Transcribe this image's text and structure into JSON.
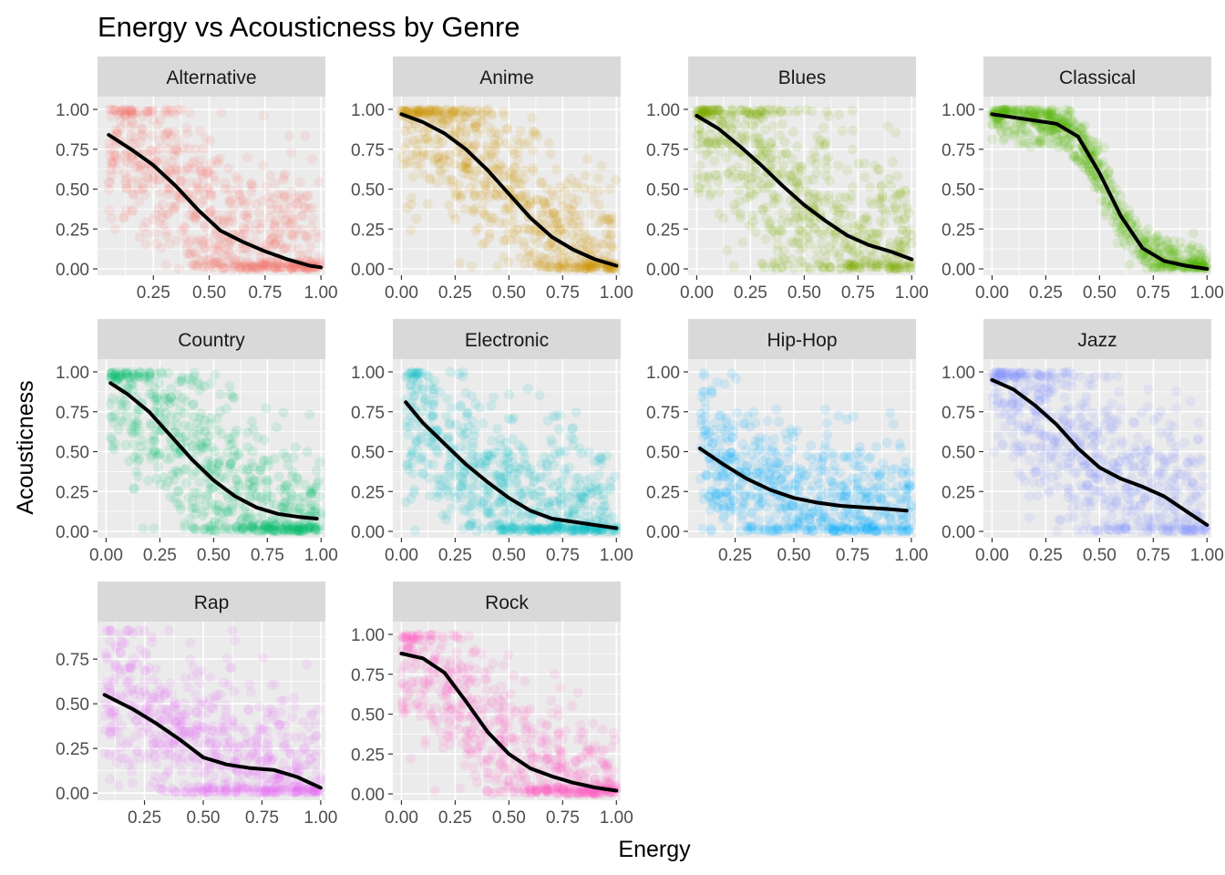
{
  "chart_data": {
    "type": "scatter",
    "title": "Energy vs Acousticness by Genre",
    "xlabel": "Energy",
    "ylabel": "Acousticness",
    "facet_layout": {
      "columns": 4,
      "rows": 3
    },
    "point_alpha": 0.12,
    "smooth_color": "#000000",
    "panels": [
      {
        "name": "Alternative",
        "color": "#F8766D",
        "xlim": [
          0.0,
          1.02
        ],
        "ylim": [
          -0.04,
          1.08
        ],
        "xticks": [
          0.25,
          0.5,
          0.75,
          1.0
        ],
        "xtick_labels": [
          "0.25",
          "0.50",
          "0.75",
          "1.00"
        ],
        "yticks": [
          0,
          0.25,
          0.5,
          0.75,
          1.0
        ],
        "ytick_labels": [
          "0.00",
          "0.25",
          "0.50",
          "0.75",
          "1.00"
        ],
        "x_range": [
          0.05,
          1.0
        ],
        "y_spread": 0.28,
        "smooth": [
          [
            0.05,
            0.84
          ],
          [
            0.15,
            0.75
          ],
          [
            0.25,
            0.65
          ],
          [
            0.35,
            0.52
          ],
          [
            0.45,
            0.37
          ],
          [
            0.55,
            0.24
          ],
          [
            0.65,
            0.17
          ],
          [
            0.75,
            0.11
          ],
          [
            0.85,
            0.06
          ],
          [
            0.95,
            0.02
          ],
          [
            1.0,
            0.01
          ]
        ]
      },
      {
        "name": "Anime",
        "color": "#CD9600",
        "xlim": [
          -0.04,
          1.02
        ],
        "ylim": [
          -0.04,
          1.08
        ],
        "xticks": [
          0,
          0.25,
          0.5,
          0.75,
          1.0
        ],
        "xtick_labels": [
          "0.00",
          "0.25",
          "0.50",
          "0.75",
          "1.00"
        ],
        "yticks": [
          0,
          0.25,
          0.5,
          0.75,
          1.0
        ],
        "ytick_labels": [
          "0.00",
          "0.25",
          "0.50",
          "0.75",
          "1.00"
        ],
        "x_range": [
          0.0,
          1.0
        ],
        "y_spread": 0.25,
        "smooth": [
          [
            0.0,
            0.97
          ],
          [
            0.1,
            0.92
          ],
          [
            0.2,
            0.85
          ],
          [
            0.3,
            0.75
          ],
          [
            0.4,
            0.62
          ],
          [
            0.5,
            0.47
          ],
          [
            0.6,
            0.32
          ],
          [
            0.7,
            0.2
          ],
          [
            0.8,
            0.12
          ],
          [
            0.9,
            0.06
          ],
          [
            1.0,
            0.02
          ]
        ]
      },
      {
        "name": "Blues",
        "color": "#7CAE00",
        "xlim": [
          -0.04,
          1.02
        ],
        "ylim": [
          -0.04,
          1.08
        ],
        "xticks": [
          0,
          0.25,
          0.5,
          0.75,
          1.0
        ],
        "xtick_labels": [
          "0.00",
          "0.25",
          "0.50",
          "0.75",
          "1.00"
        ],
        "yticks": [
          0,
          0.25,
          0.5,
          0.75,
          1.0
        ],
        "ytick_labels": [
          "0.00",
          "0.25",
          "0.50",
          "0.75",
          "1.00"
        ],
        "x_range": [
          0.0,
          1.0
        ],
        "y_spread": 0.3,
        "smooth": [
          [
            0.0,
            0.96
          ],
          [
            0.1,
            0.88
          ],
          [
            0.2,
            0.77
          ],
          [
            0.3,
            0.65
          ],
          [
            0.4,
            0.52
          ],
          [
            0.5,
            0.4
          ],
          [
            0.6,
            0.3
          ],
          [
            0.7,
            0.21
          ],
          [
            0.8,
            0.15
          ],
          [
            0.9,
            0.11
          ],
          [
            1.0,
            0.06
          ]
        ]
      },
      {
        "name": "Classical",
        "color": "#00BE67",
        "point_color": "#53B400",
        "xlim": [
          -0.04,
          1.02
        ],
        "ylim": [
          -0.04,
          1.08
        ],
        "xticks": [
          0,
          0.25,
          0.5,
          0.75,
          1.0
        ],
        "xtick_labels": [
          "0.00",
          "0.25",
          "0.50",
          "0.75",
          "1.00"
        ],
        "yticks": [
          0,
          0.25,
          0.5,
          0.75,
          1.0
        ],
        "ytick_labels": [
          "0.00",
          "0.25",
          "0.50",
          "0.75",
          "1.00"
        ],
        "x_range": [
          0.0,
          1.0
        ],
        "y_spread": 0.08,
        "smooth": [
          [
            0.0,
            0.97
          ],
          [
            0.1,
            0.95
          ],
          [
            0.2,
            0.93
          ],
          [
            0.3,
            0.91
          ],
          [
            0.4,
            0.83
          ],
          [
            0.5,
            0.6
          ],
          [
            0.6,
            0.33
          ],
          [
            0.7,
            0.13
          ],
          [
            0.8,
            0.05
          ],
          [
            0.9,
            0.02
          ],
          [
            1.0,
            0.0
          ]
        ]
      },
      {
        "name": "Country",
        "color": "#00BE67",
        "xlim": [
          -0.04,
          1.02
        ],
        "ylim": [
          -0.04,
          1.08
        ],
        "xticks": [
          0,
          0.25,
          0.5,
          0.75,
          1.0
        ],
        "xtick_labels": [
          "0.00",
          "0.25",
          "0.50",
          "0.75",
          "1.00"
        ],
        "yticks": [
          0,
          0.25,
          0.5,
          0.75,
          1.0
        ],
        "ytick_labels": [
          "0.00",
          "0.25",
          "0.50",
          "0.75",
          "1.00"
        ],
        "x_range": [
          0.02,
          1.0
        ],
        "y_spread": 0.28,
        "smooth": [
          [
            0.02,
            0.93
          ],
          [
            0.1,
            0.86
          ],
          [
            0.2,
            0.75
          ],
          [
            0.3,
            0.6
          ],
          [
            0.4,
            0.45
          ],
          [
            0.5,
            0.32
          ],
          [
            0.6,
            0.22
          ],
          [
            0.7,
            0.15
          ],
          [
            0.8,
            0.11
          ],
          [
            0.9,
            0.09
          ],
          [
            0.98,
            0.08
          ]
        ]
      },
      {
        "name": "Electronic",
        "color": "#00BFC4",
        "xlim": [
          -0.04,
          1.02
        ],
        "ylim": [
          -0.04,
          1.08
        ],
        "xticks": [
          0,
          0.25,
          0.5,
          0.75,
          1.0
        ],
        "xtick_labels": [
          "0.00",
          "0.25",
          "0.50",
          "0.75",
          "1.00"
        ],
        "yticks": [
          0,
          0.25,
          0.5,
          0.75,
          1.0
        ],
        "ytick_labels": [
          "0.00",
          "0.25",
          "0.50",
          "0.75",
          "1.00"
        ],
        "x_range": [
          0.02,
          1.0
        ],
        "y_spread": 0.25,
        "smooth": [
          [
            0.02,
            0.81
          ],
          [
            0.1,
            0.68
          ],
          [
            0.2,
            0.55
          ],
          [
            0.3,
            0.42
          ],
          [
            0.4,
            0.31
          ],
          [
            0.5,
            0.21
          ],
          [
            0.6,
            0.13
          ],
          [
            0.7,
            0.08
          ],
          [
            0.8,
            0.06
          ],
          [
            0.9,
            0.04
          ],
          [
            1.0,
            0.02
          ]
        ]
      },
      {
        "name": "Hip-Hop",
        "color": "#00A9FF",
        "xlim": [
          0.05,
          1.02
        ],
        "ylim": [
          -0.04,
          1.08
        ],
        "xticks": [
          0.25,
          0.5,
          0.75,
          1.0
        ],
        "xtick_labels": [
          "0.25",
          "0.50",
          "0.75",
          "1.00"
        ],
        "yticks": [
          0,
          0.25,
          0.5,
          0.75,
          1.0
        ],
        "ytick_labels": [
          "0.00",
          "0.25",
          "0.50",
          "0.75",
          "1.00"
        ],
        "x_range": [
          0.1,
          1.0
        ],
        "y_spread": 0.22,
        "smooth": [
          [
            0.1,
            0.52
          ],
          [
            0.2,
            0.42
          ],
          [
            0.3,
            0.33
          ],
          [
            0.4,
            0.26
          ],
          [
            0.5,
            0.21
          ],
          [
            0.6,
            0.18
          ],
          [
            0.7,
            0.16
          ],
          [
            0.8,
            0.15
          ],
          [
            0.9,
            0.14
          ],
          [
            0.98,
            0.13
          ]
        ]
      },
      {
        "name": "Jazz",
        "color": "#8494FF",
        "xlim": [
          -0.04,
          1.02
        ],
        "ylim": [
          -0.04,
          1.08
        ],
        "xticks": [
          0,
          0.25,
          0.5,
          0.75,
          1.0
        ],
        "xtick_labels": [
          "0.00",
          "0.25",
          "0.50",
          "0.75",
          "1.00"
        ],
        "yticks": [
          0,
          0.25,
          0.5,
          0.75,
          1.0
        ],
        "ytick_labels": [
          "0.00",
          "0.25",
          "0.50",
          "0.75",
          "1.00"
        ],
        "x_range": [
          0.0,
          1.0
        ],
        "y_spread": 0.28,
        "smooth": [
          [
            0.0,
            0.95
          ],
          [
            0.1,
            0.89
          ],
          [
            0.2,
            0.79
          ],
          [
            0.3,
            0.67
          ],
          [
            0.4,
            0.52
          ],
          [
            0.5,
            0.4
          ],
          [
            0.6,
            0.33
          ],
          [
            0.7,
            0.28
          ],
          [
            0.8,
            0.22
          ],
          [
            0.9,
            0.13
          ],
          [
            1.0,
            0.04
          ]
        ]
      },
      {
        "name": "Rap",
        "color": "#E76BF3",
        "xlim": [
          0.05,
          1.02
        ],
        "ylim": [
          -0.04,
          0.96
        ],
        "xticks": [
          0.25,
          0.5,
          0.75,
          1.0
        ],
        "xtick_labels": [
          "0.25",
          "0.50",
          "0.75",
          "1.00"
        ],
        "yticks": [
          0,
          0.25,
          0.5,
          0.75
        ],
        "ytick_labels": [
          "0.00",
          "0.25",
          "0.50",
          "0.75"
        ],
        "x_range": [
          0.08,
          1.0
        ],
        "y_spread": 0.25,
        "smooth": [
          [
            0.08,
            0.55
          ],
          [
            0.2,
            0.47
          ],
          [
            0.3,
            0.39
          ],
          [
            0.4,
            0.3
          ],
          [
            0.5,
            0.2
          ],
          [
            0.6,
            0.16
          ],
          [
            0.7,
            0.14
          ],
          [
            0.8,
            0.13
          ],
          [
            0.9,
            0.09
          ],
          [
            1.0,
            0.03
          ]
        ]
      },
      {
        "name": "Rock",
        "color": "#FF61C3",
        "xlim": [
          -0.04,
          1.02
        ],
        "ylim": [
          -0.04,
          1.08
        ],
        "xticks": [
          0,
          0.25,
          0.5,
          0.75,
          1.0
        ],
        "xtick_labels": [
          "0.00",
          "0.25",
          "0.50",
          "0.75",
          "1.00"
        ],
        "yticks": [
          0,
          0.25,
          0.5,
          0.75,
          1.0
        ],
        "ytick_labels": [
          "0.00",
          "0.25",
          "0.50",
          "0.75",
          "1.00"
        ],
        "x_range": [
          0.0,
          1.0
        ],
        "y_spread": 0.25,
        "smooth": [
          [
            0.0,
            0.88
          ],
          [
            0.1,
            0.85
          ],
          [
            0.2,
            0.76
          ],
          [
            0.3,
            0.58
          ],
          [
            0.4,
            0.39
          ],
          [
            0.5,
            0.25
          ],
          [
            0.6,
            0.16
          ],
          [
            0.7,
            0.11
          ],
          [
            0.8,
            0.07
          ],
          [
            0.9,
            0.04
          ],
          [
            1.0,
            0.02
          ]
        ]
      }
    ]
  }
}
